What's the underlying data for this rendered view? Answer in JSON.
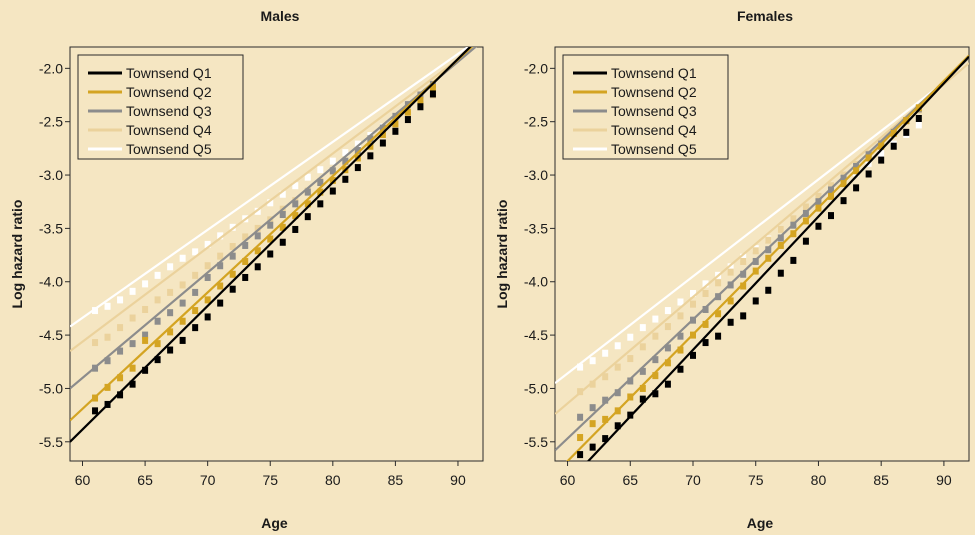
{
  "chart_data": [
    {
      "type": "line",
      "title": "Males",
      "xlabel": "Age",
      "ylabel": "Log hazard ratio",
      "xlim": [
        59,
        92
      ],
      "ylim": [
        -5.68,
        -1.8
      ],
      "xticks": [
        60,
        65,
        70,
        75,
        80,
        85,
        90
      ],
      "yticks": [
        -2.0,
        -2.5,
        -3.0,
        -3.5,
        -4.0,
        -4.5,
        -5.0,
        -5.5
      ],
      "ytick_labels": [
        "-2.0",
        "-2.5",
        "-3.0",
        "-3.5",
        "-4.0",
        "-4.5",
        "-5.0",
        "-5.5"
      ],
      "legend_position": "top-left",
      "grid": false,
      "series": [
        {
          "name": "Townsend Q1",
          "color": "#000000",
          "line": {
            "x": [
              59,
              92
            ],
            "y": [
              -5.5,
              -1.68
            ]
          },
          "points": {
            "x": [
              61,
              62,
              63,
              64,
              65,
              66,
              67,
              68,
              69,
              70,
              71,
              72,
              73,
              74,
              75,
              76,
              77,
              78,
              79,
              80,
              81,
              82,
              83,
              84,
              85,
              86,
              87,
              88
            ],
            "y": [
              -5.21,
              -5.15,
              -5.06,
              -4.96,
              -4.83,
              -4.73,
              -4.64,
              -4.55,
              -4.43,
              -4.33,
              -4.2,
              -4.07,
              -3.96,
              -3.86,
              -3.74,
              -3.63,
              -3.51,
              -3.39,
              -3.27,
              -3.15,
              -3.04,
              -2.93,
              -2.82,
              -2.7,
              -2.59,
              -2.48,
              -2.36,
              -2.24
            ]
          }
        },
        {
          "name": "Townsend Q2",
          "color": "#d4a422",
          "line": {
            "x": [
              59,
              92
            ],
            "y": [
              -5.3,
              -1.7
            ]
          },
          "points": {
            "x": [
              61,
              62,
              63,
              64,
              65,
              66,
              67,
              68,
              69,
              70,
              71,
              72,
              73,
              74,
              75,
              76,
              77,
              78,
              79,
              80,
              81,
              82,
              83,
              84,
              85,
              86,
              87,
              88
            ],
            "y": [
              -5.09,
              -4.99,
              -4.9,
              -4.81,
              -4.55,
              -4.58,
              -4.47,
              -4.37,
              -4.27,
              -4.17,
              -4.04,
              -3.93,
              -3.81,
              -3.71,
              -3.6,
              -3.49,
              -3.38,
              -3.27,
              -3.16,
              -3.05,
              -2.95,
              -2.84,
              -2.73,
              -2.62,
              -2.52,
              -2.41,
              -2.3,
              -2.18
            ]
          }
        },
        {
          "name": "Townsend Q3",
          "color": "#8c8c8c",
          "line": {
            "x": [
              59,
              92
            ],
            "y": [
              -5.0,
              -1.74
            ]
          },
          "points": {
            "x": [
              61,
              62,
              63,
              64,
              65,
              66,
              67,
              68,
              69,
              70,
              71,
              72,
              73,
              74,
              75,
              76,
              77,
              78,
              79,
              80,
              81,
              82,
              83,
              84,
              85,
              86,
              87,
              88
            ],
            "y": [
              -4.81,
              -4.74,
              -4.65,
              -4.58,
              -4.5,
              -4.37,
              -4.29,
              -4.2,
              -4.1,
              -3.96,
              -3.85,
              -3.76,
              -3.66,
              -3.57,
              -3.47,
              -3.37,
              -3.27,
              -3.16,
              -3.07,
              -2.96,
              -2.87,
              -2.77,
              -2.66,
              -2.56,
              -2.45,
              -2.34,
              -2.25,
              -2.15
            ]
          }
        },
        {
          "name": "Townsend Q4",
          "color": "#ebd29c",
          "line": {
            "x": [
              59,
              92
            ],
            "y": [
              -4.65,
              -1.74
            ]
          },
          "points": {
            "x": [
              61,
              62,
              63,
              64,
              65,
              66,
              67,
              68,
              69,
              70,
              71,
              72,
              73,
              74,
              75,
              76,
              77,
              78,
              79,
              80,
              81,
              82,
              83,
              84,
              85,
              86,
              87,
              88
            ],
            "y": [
              -4.57,
              -4.52,
              -4.43,
              -4.34,
              -4.26,
              -4.17,
              -4.1,
              -4.03,
              -3.94,
              -3.85,
              -3.76,
              -3.67,
              -3.58,
              -3.5,
              -3.42,
              -3.32,
              -3.24,
              -3.15,
              -3.06,
              -2.97,
              -2.88,
              -2.79,
              -2.7,
              -2.61,
              -2.52,
              -2.43,
              -2.34,
              -2.25
            ]
          }
        },
        {
          "name": "Townsend Q5",
          "color": "#ffffff",
          "line": {
            "x": [
              59,
              92
            ],
            "y": [
              -4.42,
              -1.7
            ]
          },
          "points": {
            "x": [
              61,
              62,
              63,
              64,
              65,
              66,
              67,
              68,
              69,
              70,
              71,
              72,
              73,
              74,
              75,
              76,
              77,
              78,
              79,
              80,
              81,
              82,
              83,
              84,
              85,
              86,
              87,
              88
            ],
            "y": [
              -4.27,
              -4.23,
              -4.17,
              -4.09,
              -4.02,
              -3.94,
              -3.86,
              -3.78,
              -3.72,
              -3.65,
              -3.57,
              -3.49,
              -3.41,
              -3.34,
              -3.26,
              -3.18,
              -3.1,
              -3.02,
              -2.95,
              -2.87,
              -2.79,
              -2.71,
              -2.63,
              -2.55,
              -2.46,
              -2.37,
              -2.29,
              -2.21
            ]
          }
        }
      ]
    },
    {
      "type": "line",
      "title": "Females",
      "xlabel": "Age",
      "ylabel": "Log hazard ratio",
      "xlim": [
        59,
        92
      ],
      "ylim": [
        -5.68,
        -1.8
      ],
      "xticks": [
        60,
        65,
        70,
        75,
        80,
        85,
        90
      ],
      "yticks": [
        -2.0,
        -2.5,
        -3.0,
        -3.5,
        -4.0,
        -4.5,
        -5.0,
        -5.5
      ],
      "ytick_labels": [
        "-2.0",
        "-2.5",
        "-3.0",
        "-3.5",
        "-4.0",
        "-4.5",
        "-5.0",
        "-5.5"
      ],
      "legend_position": "top-left",
      "grid": false,
      "series": [
        {
          "name": "Townsend Q1",
          "color": "#000000",
          "line": {
            "x": [
              61.5,
              92
            ],
            "y": [
              -5.7,
              -1.89
            ]
          },
          "points": {
            "x": [
              61,
              62,
              63,
              64,
              65,
              66,
              67,
              68,
              69,
              70,
              71,
              72,
              73,
              74,
              75,
              76,
              77,
              78,
              79,
              80,
              81,
              82,
              83,
              84,
              85,
              86,
              87,
              88
            ],
            "y": [
              -5.62,
              -5.55,
              -5.47,
              -5.35,
              -5.25,
              -5.1,
              -5.05,
              -4.96,
              -4.82,
              -4.69,
              -4.57,
              -4.51,
              -4.38,
              -4.32,
              -4.18,
              -4.08,
              -3.92,
              -3.8,
              -3.62,
              -3.48,
              -3.38,
              -3.24,
              -3.12,
              -2.99,
              -2.86,
              -2.73,
              -2.6,
              -2.47
            ]
          }
        },
        {
          "name": "Townsend Q2",
          "color": "#d4a422",
          "line": {
            "x": [
              59,
              92
            ],
            "y": [
              -5.8,
              -1.88
            ]
          },
          "points": {
            "x": [
              61,
              62,
              63,
              64,
              65,
              66,
              67,
              68,
              69,
              70,
              71,
              72,
              73,
              74,
              75,
              76,
              77,
              78,
              79,
              80,
              81,
              82,
              83,
              84,
              85,
              86,
              87,
              88
            ],
            "y": [
              -5.46,
              -5.33,
              -5.29,
              -5.21,
              -5.08,
              -5.0,
              -4.88,
              -4.76,
              -4.64,
              -4.5,
              -4.4,
              -4.3,
              -4.18,
              -4.04,
              -3.9,
              -3.78,
              -3.66,
              -3.55,
              -3.43,
              -3.31,
              -3.2,
              -3.08,
              -2.96,
              -2.84,
              -2.73,
              -2.61,
              -2.49,
              -2.37
            ]
          }
        },
        {
          "name": "Townsend Q3",
          "color": "#8c8c8c",
          "line": {
            "x": [
              59,
              92
            ],
            "y": [
              -5.58,
              -1.9
            ]
          },
          "points": {
            "x": [
              61,
              62,
              63,
              64,
              65,
              66,
              67,
              68,
              69,
              70,
              71,
              72,
              73,
              74,
              75,
              76,
              77,
              78,
              79,
              80,
              81,
              82,
              83,
              84,
              85,
              86,
              87,
              88
            ],
            "y": [
              -5.27,
              -5.18,
              -5.11,
              -5.04,
              -4.93,
              -4.84,
              -4.73,
              -4.62,
              -4.51,
              -4.36,
              -4.26,
              -4.14,
              -4.03,
              -3.93,
              -3.81,
              -3.7,
              -3.59,
              -3.47,
              -3.36,
              -3.25,
              -3.14,
              -3.03,
              -2.92,
              -2.81,
              -2.71,
              -2.6,
              -2.49,
              -2.38
            ]
          }
        },
        {
          "name": "Townsend Q4",
          "color": "#ebd29c",
          "line": {
            "x": [
              59,
              92
            ],
            "y": [
              -5.24,
              -1.95
            ]
          },
          "points": {
            "x": [
              61,
              62,
              63,
              64,
              65,
              66,
              67,
              68,
              69,
              70,
              71,
              72,
              73,
              74,
              75,
              76,
              77,
              78,
              79,
              80,
              81,
              82,
              83,
              84,
              85,
              86,
              87,
              88
            ],
            "y": [
              -5.03,
              -4.96,
              -4.89,
              -4.8,
              -4.72,
              -4.61,
              -4.51,
              -4.42,
              -4.32,
              -4.21,
              -4.11,
              -4.01,
              -3.91,
              -3.81,
              -3.71,
              -3.61,
              -3.51,
              -3.41,
              -3.3,
              -3.2,
              -3.1,
              -3.0,
              -2.9,
              -2.8,
              -2.7,
              -2.6,
              -2.49,
              -2.39
            ]
          }
        },
        {
          "name": "Townsend Q5",
          "color": "#ffffff",
          "line": {
            "x": [
              59,
              92
            ],
            "y": [
              -4.95,
              -1.95
            ]
          },
          "points": {
            "x": [
              61,
              62,
              63,
              64,
              65,
              66,
              67,
              68,
              69,
              70,
              71,
              72,
              73,
              74,
              75,
              76,
              77,
              78,
              79,
              80,
              81,
              82,
              83,
              84,
              85,
              86,
              87,
              88
            ],
            "y": [
              -4.8,
              -4.74,
              -4.67,
              -4.6,
              -4.52,
              -4.43,
              -4.35,
              -4.27,
              -4.19,
              -4.11,
              -4.02,
              -3.94,
              -3.86,
              -3.77,
              -3.69,
              -3.6,
              -3.51,
              -3.43,
              -3.34,
              -3.25,
              -3.16,
              -3.07,
              -2.98,
              -2.89,
              -2.8,
              -2.71,
              -2.62,
              -2.53
            ]
          }
        }
      ]
    }
  ]
}
